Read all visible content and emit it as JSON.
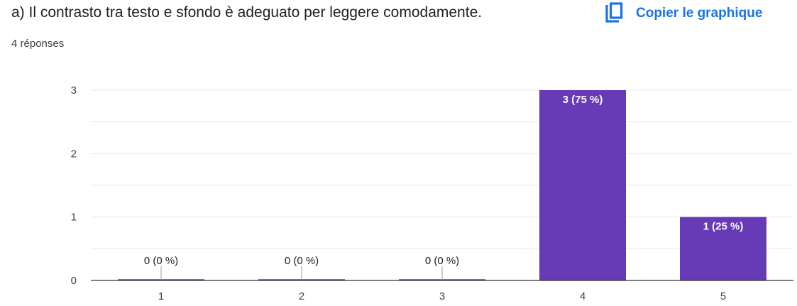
{
  "header": {
    "title": "a)  Il contrasto tra testo e sfondo è adeguato per leggere comodamente.",
    "responses": "4 réponses",
    "copy_label": "Copier le graphique",
    "copy_icon": "copy-icon"
  },
  "colors": {
    "bar": "#673ab7",
    "accent": "#1a73e8",
    "grid": "#e8e8e8",
    "axis": "#333333"
  },
  "chart_data": {
    "type": "bar",
    "title": "",
    "xlabel": "",
    "ylabel": "",
    "categories": [
      "1",
      "2",
      "3",
      "4",
      "5"
    ],
    "values": [
      0,
      0,
      0,
      3,
      1
    ],
    "data_labels": [
      "0 (0 %)",
      "0 (0 %)",
      "0 (0 %)",
      "3 (75 %)",
      "1 (25 %)"
    ],
    "ylim": [
      0,
      3
    ],
    "yticks": [
      0,
      1,
      2,
      3
    ],
    "grid": true,
    "legend": "none"
  }
}
